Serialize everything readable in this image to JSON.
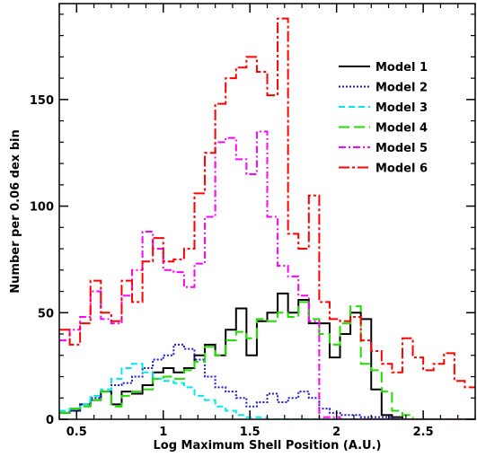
{
  "chart_data": {
    "type": "line",
    "step": true,
    "title": "",
    "xlabel": "Log Maximum Shell Position (A.U.)",
    "ylabel": "Number per 0.06 dex bin",
    "xlim": [
      0.4,
      2.8
    ],
    "ylim": [
      0,
      195
    ],
    "xticks": [
      0.5,
      1,
      1.5,
      2,
      2.5
    ],
    "xtick_labels": [
      "0.5",
      "1",
      "1.5",
      "2",
      "2.5"
    ],
    "yticks": [
      0,
      50,
      100,
      150
    ],
    "ytick_labels": [
      "0",
      "50",
      "100",
      "150"
    ],
    "grid": false,
    "legend": "top-right",
    "bin_start": 0.4,
    "bin_width": 0.06,
    "series": [
      {
        "name": "Model 1",
        "color": "#000000",
        "dash": "solid",
        "values": [
          3,
          4,
          7,
          9,
          13,
          7,
          13,
          12,
          16,
          22,
          24,
          22,
          24,
          30,
          35,
          30,
          42,
          52,
          30,
          46,
          50,
          59,
          50,
          56,
          45,
          45,
          29,
          40,
          50,
          47,
          14,
          2,
          1,
          0,
          0,
          0,
          0,
          0,
          0,
          0
        ]
      },
      {
        "name": "Model 2",
        "color": "#1a1acc",
        "dash": "2,2",
        "values": [
          3,
          4,
          7,
          10,
          13,
          16,
          17,
          20,
          24,
          28,
          30,
          35,
          33,
          28,
          20,
          15,
          13,
          10,
          6,
          8,
          12,
          8,
          10,
          13,
          10,
          5,
          3,
          2,
          2,
          1,
          1,
          1,
          0,
          0,
          0,
          0,
          0,
          0,
          0,
          0
        ]
      },
      {
        "name": "Model 3",
        "color": "#00e5ee",
        "dash": "7,4",
        "values": [
          4,
          5,
          7,
          11,
          14,
          19,
          24,
          26,
          22,
          19,
          18,
          17,
          15,
          11,
          9,
          6,
          4,
          2,
          1,
          1,
          0,
          0,
          0,
          0,
          0,
          0,
          0,
          0,
          0,
          0,
          0,
          0,
          0,
          0,
          0,
          0,
          0,
          0,
          0,
          0
        ]
      },
      {
        "name": "Model 4",
        "color": "#22dd00",
        "dash": "12,5",
        "values": [
          3,
          5,
          6,
          9,
          13,
          6,
          11,
          13,
          14,
          19,
          20,
          19,
          23,
          27,
          34,
          30,
          37,
          41,
          38,
          47,
          46,
          50,
          48,
          55,
          47,
          40,
          35,
          45,
          53,
          26,
          23,
          13,
          4,
          2,
          0,
          0,
          0,
          0,
          0,
          0
        ]
      },
      {
        "name": "Model 5",
        "color": "#ff00ff",
        "dash": "8,3,2,3",
        "values": [
          37,
          42,
          48,
          60,
          47,
          45,
          58,
          70,
          88,
          80,
          70,
          69,
          62,
          73,
          95,
          130,
          132,
          122,
          115,
          135,
          95,
          72,
          67,
          58,
          46,
          1,
          1,
          0,
          0,
          0,
          0,
          0,
          0,
          0,
          0,
          0,
          0,
          0,
          0,
          0
        ]
      },
      {
        "name": "Model 6",
        "color": "#ff0000",
        "dash": "12,3,3,3",
        "values": [
          42,
          35,
          45,
          65,
          50,
          46,
          65,
          55,
          74,
          85,
          74,
          75,
          80,
          106,
          125,
          148,
          160,
          165,
          170,
          163,
          152,
          188,
          87,
          80,
          105,
          55,
          47,
          46,
          48,
          37,
          32,
          26,
          22,
          38,
          29,
          23,
          26,
          31,
          18,
          15
        ]
      }
    ]
  }
}
